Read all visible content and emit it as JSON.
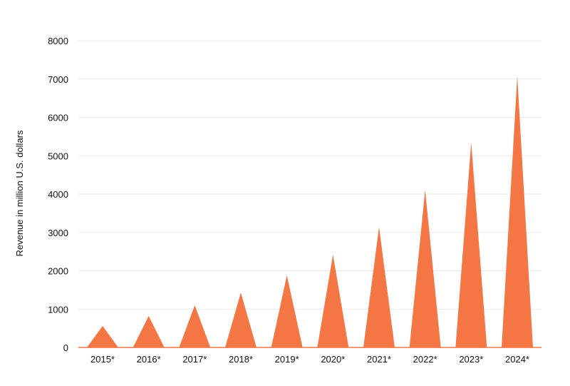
{
  "chart_data": {
    "type": "bar",
    "bar_shape": "triangle",
    "categories": [
      "2015*",
      "2016*",
      "2017*",
      "2018*",
      "2019*",
      "2020*",
      "2021*",
      "2022*",
      "2023*",
      "2024*"
    ],
    "values": [
      560,
      820,
      1100,
      1430,
      1880,
      2420,
      3140,
      4110,
      5350,
      7080
    ],
    "title": "",
    "xlabel": "",
    "ylabel": "Revenue in million U.S. dollars",
    "ylim": [
      0,
      8000
    ],
    "yticks": [
      0,
      1000,
      2000,
      3000,
      4000,
      5000,
      6000,
      7000,
      8000
    ],
    "grid": true,
    "colors": {
      "bar": "#f47644",
      "grid": "#e8e8e8",
      "axis": "#f47644"
    }
  }
}
